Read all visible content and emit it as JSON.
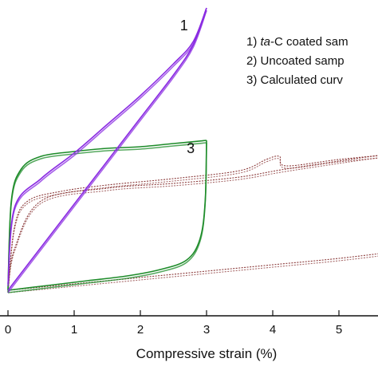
{
  "chart_data": {
    "type": "line",
    "title": "",
    "xlabel": "Compressive strain (%)",
    "ylabel": "",
    "xlim": [
      0,
      6
    ],
    "x_ticks": [
      "0",
      "1",
      "2",
      "3",
      "4",
      "5"
    ],
    "grid": false,
    "legend": {
      "placement": "top-right",
      "entries": [
        {
          "prefix": "1) ",
          "italic": "ta",
          "text": "-C coated sam"
        },
        {
          "prefix": "2) ",
          "italic": "",
          "text": "Uncoated samp"
        },
        {
          "prefix": "3) ",
          "italic": "",
          "text": "Calculated curv"
        }
      ]
    },
    "curve_labels": [
      {
        "text": "1",
        "x": 2.6,
        "y": 0.835
      },
      {
        "text": "3",
        "x": 2.7,
        "y": 0.45
      }
    ],
    "series": [
      {
        "name": "1",
        "color": "#8a2be2",
        "loading": [
          [
            0,
            0.02
          ],
          [
            0.5,
            0.155
          ],
          [
            1,
            0.29
          ],
          [
            1.5,
            0.425
          ],
          [
            2,
            0.56
          ],
          [
            2.5,
            0.695
          ],
          [
            2.8,
            0.79
          ],
          [
            3,
            0.905
          ]
        ],
        "unloading": [
          [
            3,
            0.905
          ],
          [
            2.8,
            0.8
          ],
          [
            2.5,
            0.73
          ],
          [
            2,
            0.63
          ],
          [
            1.5,
            0.54
          ],
          [
            1,
            0.45
          ],
          [
            0.5,
            0.37
          ],
          [
            0.1,
            0.28
          ],
          [
            0,
            0.04
          ]
        ]
      },
      {
        "name": "3",
        "color": "#1e8c2a",
        "loading": [
          [
            0,
            0.02
          ],
          [
            0.05,
            0.3
          ],
          [
            0.2,
            0.4
          ],
          [
            0.5,
            0.44
          ],
          [
            1,
            0.455
          ],
          [
            1.5,
            0.465
          ],
          [
            2,
            0.47
          ],
          [
            2.5,
            0.48
          ],
          [
            3,
            0.49
          ]
        ],
        "unloading": [
          [
            3,
            0.49
          ],
          [
            2.98,
            0.3
          ],
          [
            2.9,
            0.18
          ],
          [
            2.7,
            0.115
          ],
          [
            2.3,
            0.085
          ],
          [
            1.8,
            0.065
          ],
          [
            1.2,
            0.05
          ],
          [
            0.6,
            0.035
          ],
          [
            0,
            0.02
          ]
        ]
      },
      {
        "name": "2",
        "color": "#8b3a3a",
        "loading": [
          [
            0,
            0.02
          ],
          [
            0.1,
            0.22
          ],
          [
            0.3,
            0.3
          ],
          [
            0.8,
            0.33
          ],
          [
            1.5,
            0.35
          ],
          [
            2.5,
            0.37
          ],
          [
            3.5,
            0.395
          ],
          [
            3.9,
            0.43
          ],
          [
            4.1,
            0.44
          ],
          [
            4.2,
            0.41
          ],
          [
            5,
            0.43
          ],
          [
            6,
            0.45
          ]
        ],
        "unloading": [
          [
            6,
            0.45
          ],
          [
            5.5,
            0.44
          ],
          [
            4.2,
            0.4
          ],
          [
            3.5,
            0.375
          ],
          [
            2.5,
            0.355
          ],
          [
            1.5,
            0.34
          ],
          [
            0.5,
            0.3
          ],
          [
            0.1,
            0.15
          ],
          [
            0,
            0.02
          ]
        ],
        "baseline": [
          [
            0,
            0.02
          ],
          [
            1,
            0.04
          ],
          [
            2,
            0.06
          ],
          [
            3,
            0.08
          ],
          [
            4,
            0.1
          ],
          [
            5,
            0.12
          ],
          [
            6,
            0.145
          ]
        ]
      }
    ]
  }
}
